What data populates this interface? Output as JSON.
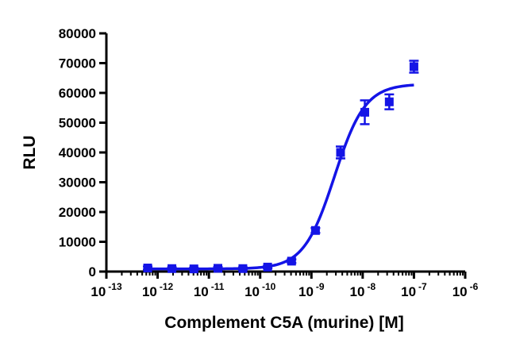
{
  "chart_data": {
    "type": "scatter",
    "title": "",
    "xlabel": "Complement C5A (murine) [M]",
    "ylabel": "RLU",
    "x_scale": "log",
    "xlim": [
      1e-13,
      1e-06
    ],
    "ylim": [
      0,
      80000
    ],
    "x_tick_base": "10",
    "x_tick_exponents": [
      "-13",
      "-12",
      "-11",
      "-10",
      "-9",
      "-8",
      "-7",
      "-6"
    ],
    "y_ticks": [
      "0",
      "10000",
      "20000",
      "30000",
      "40000",
      "50000",
      "60000",
      "70000",
      "80000"
    ],
    "grid": false,
    "legend": "none",
    "series": [
      {
        "color": "#1414e6",
        "marker": "square",
        "points": [
          {
            "x": 6.4e-13,
            "y": 1200,
            "err": 500
          },
          {
            "x": 1.9e-12,
            "y": 1000,
            "err": 400
          },
          {
            "x": 5.1e-12,
            "y": 900,
            "err": 400
          },
          {
            "x": 1.5e-11,
            "y": 1100,
            "err": 400
          },
          {
            "x": 4.6e-11,
            "y": 1000,
            "err": 400
          },
          {
            "x": 1.4e-10,
            "y": 1500,
            "err": 400
          },
          {
            "x": 4.1e-10,
            "y": 3500,
            "err": 600
          },
          {
            "x": 1.2e-09,
            "y": 13800,
            "err": 800
          },
          {
            "x": 3.7e-09,
            "y": 40000,
            "err": 2000
          },
          {
            "x": 1.1e-08,
            "y": 53500,
            "err": 4000
          },
          {
            "x": 3.3e-08,
            "y": 57000,
            "err": 2500
          },
          {
            "x": 1e-07,
            "y": 68800,
            "err": 2000
          }
        ],
        "fit": {
          "bottom": 900,
          "top": 63000,
          "log_ec50": -8.55,
          "hill": 1.45,
          "x_from": 6.4e-13,
          "x_to": 1e-07
        }
      }
    ]
  }
}
